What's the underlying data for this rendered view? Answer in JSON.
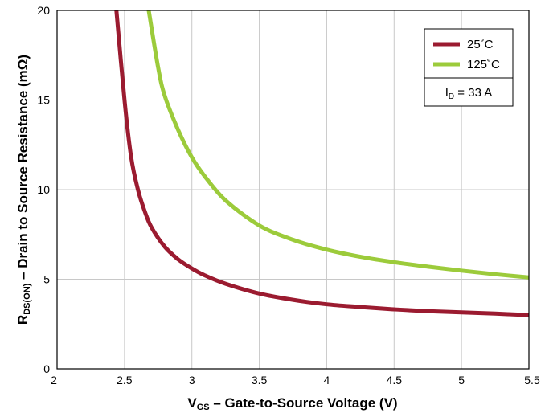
{
  "chart_data": {
    "type": "line",
    "xlabel": {
      "main": "V",
      "sub": "GS",
      "rest": " – Gate-to-Source Voltage (V)"
    },
    "ylabel": {
      "main": "R",
      "sub": "DS(ON)",
      "rest": " – Drain  to Source Resistance (mΩ)"
    },
    "xlim": [
      2,
      5.5
    ],
    "ylim": [
      0,
      20
    ],
    "x_ticks": [
      "2",
      "2.5",
      "3",
      "3.5",
      "4",
      "4.5",
      "5",
      "5.5"
    ],
    "y_ticks": [
      "0",
      "5",
      "10",
      "15",
      "20"
    ],
    "grid": true,
    "legend_position": "top-right",
    "legend_note": {
      "main": "I",
      "sub": "D",
      "rest": " = 33 A"
    },
    "series": [
      {
        "name": "25˚C",
        "color": "#9b1b30",
        "x": [
          2.44,
          2.5,
          2.55,
          2.6,
          2.65,
          2.7,
          2.8,
          2.9,
          3.0,
          3.1,
          3.25,
          3.5,
          3.75,
          4.0,
          4.25,
          4.5,
          4.75,
          5.0,
          5.25,
          5.5
        ],
        "y": [
          20,
          15.0,
          11.8,
          10.0,
          8.8,
          7.9,
          6.8,
          6.1,
          5.6,
          5.2,
          4.75,
          4.2,
          3.85,
          3.6,
          3.45,
          3.32,
          3.22,
          3.15,
          3.08,
          3.0
        ]
      },
      {
        "name": "125˚C",
        "color": "#9ccb3b",
        "x": [
          2.68,
          2.75,
          2.8,
          2.9,
          3.0,
          3.1,
          3.25,
          3.5,
          3.75,
          4.0,
          4.25,
          4.5,
          4.75,
          5.0,
          5.25,
          5.5
        ],
        "y": [
          20,
          16.8,
          15.2,
          13.3,
          11.8,
          10.7,
          9.4,
          8.0,
          7.2,
          6.65,
          6.25,
          5.95,
          5.7,
          5.48,
          5.28,
          5.1
        ]
      }
    ]
  }
}
